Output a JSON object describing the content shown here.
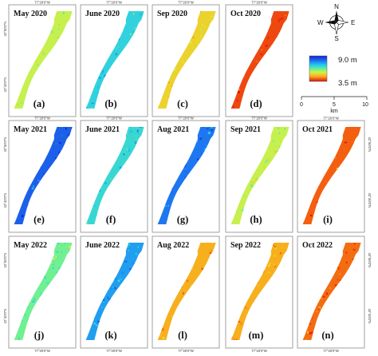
{
  "panels": [
    {
      "id": "a",
      "title": "May 2020",
      "letter": "(a)",
      "level": 0.55
    },
    {
      "id": "b",
      "title": "June 2020",
      "letter": "(b)",
      "level": 0.32
    },
    {
      "id": "c",
      "title": "Sep 2020",
      "letter": "(c)",
      "level": 0.66
    },
    {
      "id": "d",
      "title": "Oct 2020",
      "letter": "(d)",
      "level": 0.9
    },
    {
      "id": "e",
      "title": "May 2021",
      "letter": "(e)",
      "level": 0.12
    },
    {
      "id": "f",
      "title": "June 2021",
      "letter": "(f)",
      "level": 0.34
    },
    {
      "id": "g",
      "title": "Aug 2021",
      "letter": "(g)",
      "level": 0.16
    },
    {
      "id": "h",
      "title": "Sep 2021",
      "letter": "(h)",
      "level": 0.55
    },
    {
      "id": "i",
      "title": "Oct 2021",
      "letter": "(i)",
      "level": 0.86
    },
    {
      "id": "j",
      "title": "May 2022",
      "letter": "(j)",
      "level": 0.45
    },
    {
      "id": "k",
      "title": "June 2022",
      "letter": "(k)",
      "level": 0.22
    },
    {
      "id": "l",
      "title": "Aug 2022",
      "letter": "(l)",
      "level": 0.74
    },
    {
      "id": "m",
      "title": "Sep 2022",
      "letter": "(m)",
      "level": 0.74
    },
    {
      "id": "n",
      "title": "Oct 2022",
      "letter": "(n)",
      "level": 0.84
    }
  ],
  "coordinates": {
    "lon": "77°20'0\"W",
    "lat_top": "42°50'0\"N",
    "lat_bottom": "42°40'0\"N"
  },
  "legend": {
    "max_label": "9.0 m",
    "min_label": "3.5 m",
    "colors": [
      "#1020c8",
      "#1e6cf0",
      "#22c8f0",
      "#5ff0a0",
      "#d8f040",
      "#f8c020",
      "#f46010",
      "#e01010"
    ]
  },
  "compass": {
    "n": "N",
    "s": "S",
    "e": "E",
    "w": "W",
    "icon": "compass-rose-icon"
  },
  "scale_bar": {
    "ticks": [
      "0",
      "5",
      "10"
    ],
    "unit": "km"
  }
}
